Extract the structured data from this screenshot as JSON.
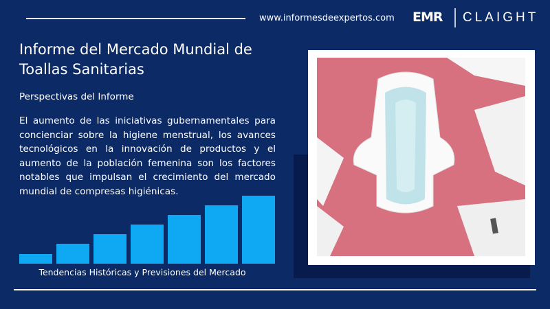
{
  "header": {
    "url": "www.informesdeexpertos.com",
    "logo_emr": "EMR",
    "logo_claight": "CLAIGHT"
  },
  "report": {
    "title": "Informe del Mercado Mundial de Toallas Sanitarias",
    "subtitle": "Perspectivas del Informe",
    "body": "El aumento de las iniciativas gubernamentales para concienciar sobre la higiene menstrual, los avances tecnológicos en la innovación de productos y el aumento de la población femenina son los factores notables que impulsan el crecimiento del mercado mundial de compresas higiénicas.",
    "caption": "Tendencias Históricas y Previsiones del Mercado"
  }
}
